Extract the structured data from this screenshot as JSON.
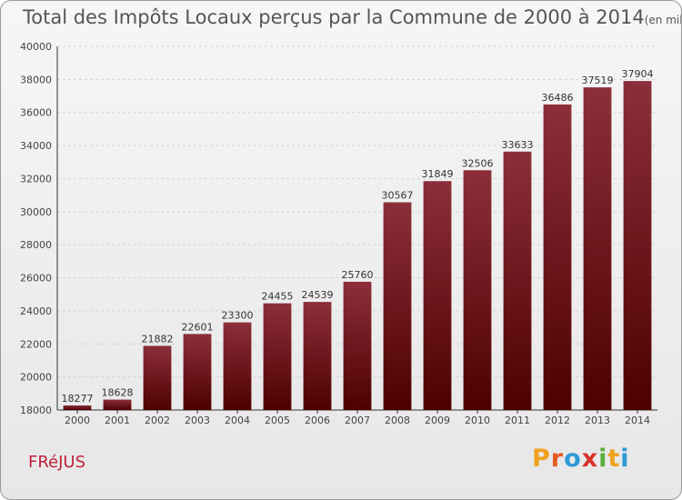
{
  "header": {
    "title": "Total des Impôts Locaux perçus par la Commune de 2000 à 2014",
    "unit": "(en milliers d'€)"
  },
  "footer": {
    "commune": "FRéJUS",
    "logo_letters": [
      "P",
      "r",
      "o",
      "x",
      "i",
      "t",
      "i"
    ],
    "logo_colors": [
      "#f0a11e",
      "#e45b23",
      "#2e9ad6",
      "#d8332a",
      "#59ad3a",
      "#f0a11e",
      "#2e9ad6"
    ]
  },
  "chart_data": {
    "type": "bar",
    "title": "Total des Impôts Locaux perçus par la Commune de 2000 à 2014",
    "xlabel": "",
    "ylabel": "",
    "categories": [
      "2000",
      "2001",
      "2002",
      "2003",
      "2004",
      "2005",
      "2006",
      "2007",
      "2008",
      "2009",
      "2010",
      "2011",
      "2012",
      "2013",
      "2014"
    ],
    "values": [
      18277,
      18628,
      21882,
      22601,
      23300,
      24455,
      24539,
      25760,
      30567,
      31849,
      32506,
      33633,
      36486,
      37519,
      37904
    ],
    "ylim": [
      18000,
      40000
    ],
    "yticks": [
      18000,
      20000,
      22000,
      24000,
      26000,
      28000,
      30000,
      32000,
      34000,
      36000,
      38000,
      40000
    ],
    "grid": true,
    "colors": {
      "bar_top": "#8c2f3a",
      "bar_bottom": "#4d0000"
    }
  }
}
